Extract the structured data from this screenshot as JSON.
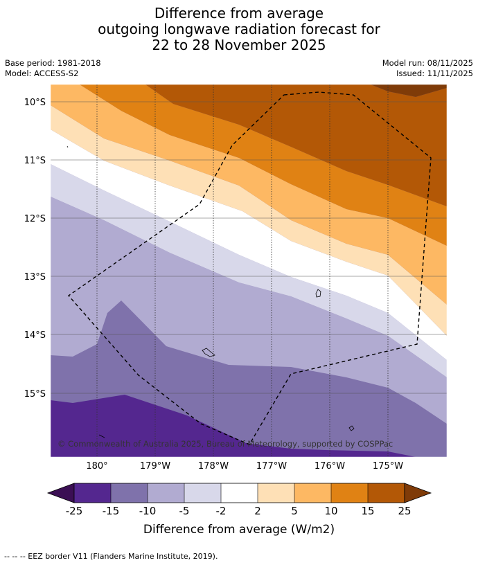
{
  "title": {
    "line1": "Difference from average",
    "line2": "outgoing longwave radiation forecast for",
    "line3": "22 to 28 November 2025"
  },
  "meta_left": {
    "base_period": "Base period: 1981-2018",
    "model": "Model: ACCESS-S2"
  },
  "meta_right": {
    "model_run": "Model run: 08/11/2025",
    "issued": "Issued: 11/11/2025"
  },
  "map": {
    "latitude_labels": [
      "10°S",
      "11°S",
      "12°S",
      "13°S",
      "14°S",
      "15°S"
    ],
    "longitude_labels": [
      "180°",
      "179°W",
      "178°W",
      "177°W",
      "176°W",
      "175°W"
    ],
    "copyright": "© Commonwealth of Australia 2025, Bureau of Meteorology, supported by COSPPac"
  },
  "colorbar": {
    "ticks": [
      "-25",
      "-15",
      "-10",
      "-5",
      "-2",
      "2",
      "5",
      "10",
      "15",
      "25"
    ],
    "colors": {
      "under": "#3b0f54",
      "c1": "#54278f",
      "c2": "#7f72ab",
      "c3": "#b1abd1",
      "c4": "#d8d8ea",
      "c5": "#ffffff",
      "c6": "#fee0b6",
      "c7": "#fdb863",
      "c8": "#e08214",
      "c9": "#b35806",
      "over": "#7f3b08"
    },
    "label": "Difference from average (W/m2)"
  },
  "footer": {
    "eez_legend": "--  --  -- EEZ border V11 (Flanders Marine Institute, 2019)."
  }
}
